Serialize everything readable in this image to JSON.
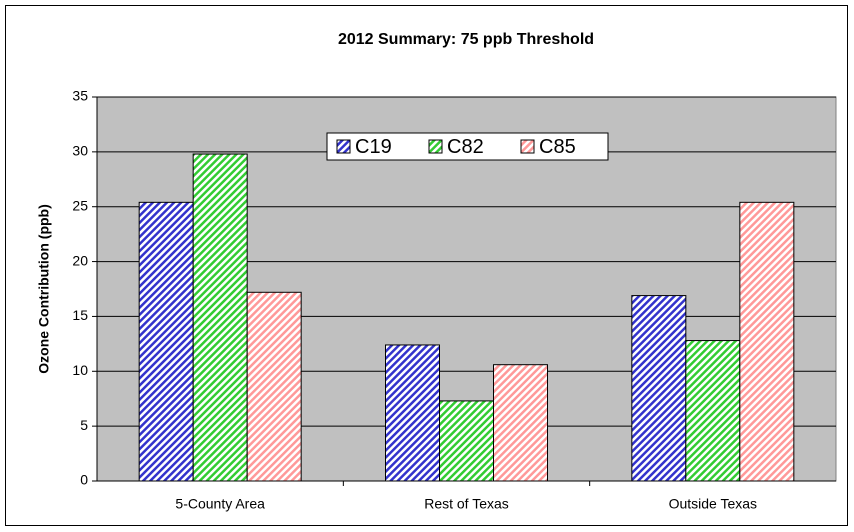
{
  "chart_data": {
    "type": "bar",
    "title": "2012 Summary: 75 ppb Threshold",
    "y_label": "Ozone Contribution (ppb)",
    "categories": [
      "5-County Area",
      "Rest of Texas",
      "Outside Texas"
    ],
    "series": [
      {
        "name": "C19",
        "color": "#3333cc",
        "values": [
          25.4,
          12.4,
          16.9
        ]
      },
      {
        "name": "C82",
        "color": "#33cc33",
        "values": [
          29.8,
          7.3,
          12.8
        ]
      },
      {
        "name": "C85",
        "color": "#ff9999",
        "values": [
          17.2,
          10.6,
          25.4
        ]
      }
    ],
    "ylim": [
      0,
      35
    ],
    "yticks": [
      0,
      5,
      10,
      15,
      20,
      25,
      30,
      35
    ],
    "grid": true,
    "legend": "top"
  }
}
